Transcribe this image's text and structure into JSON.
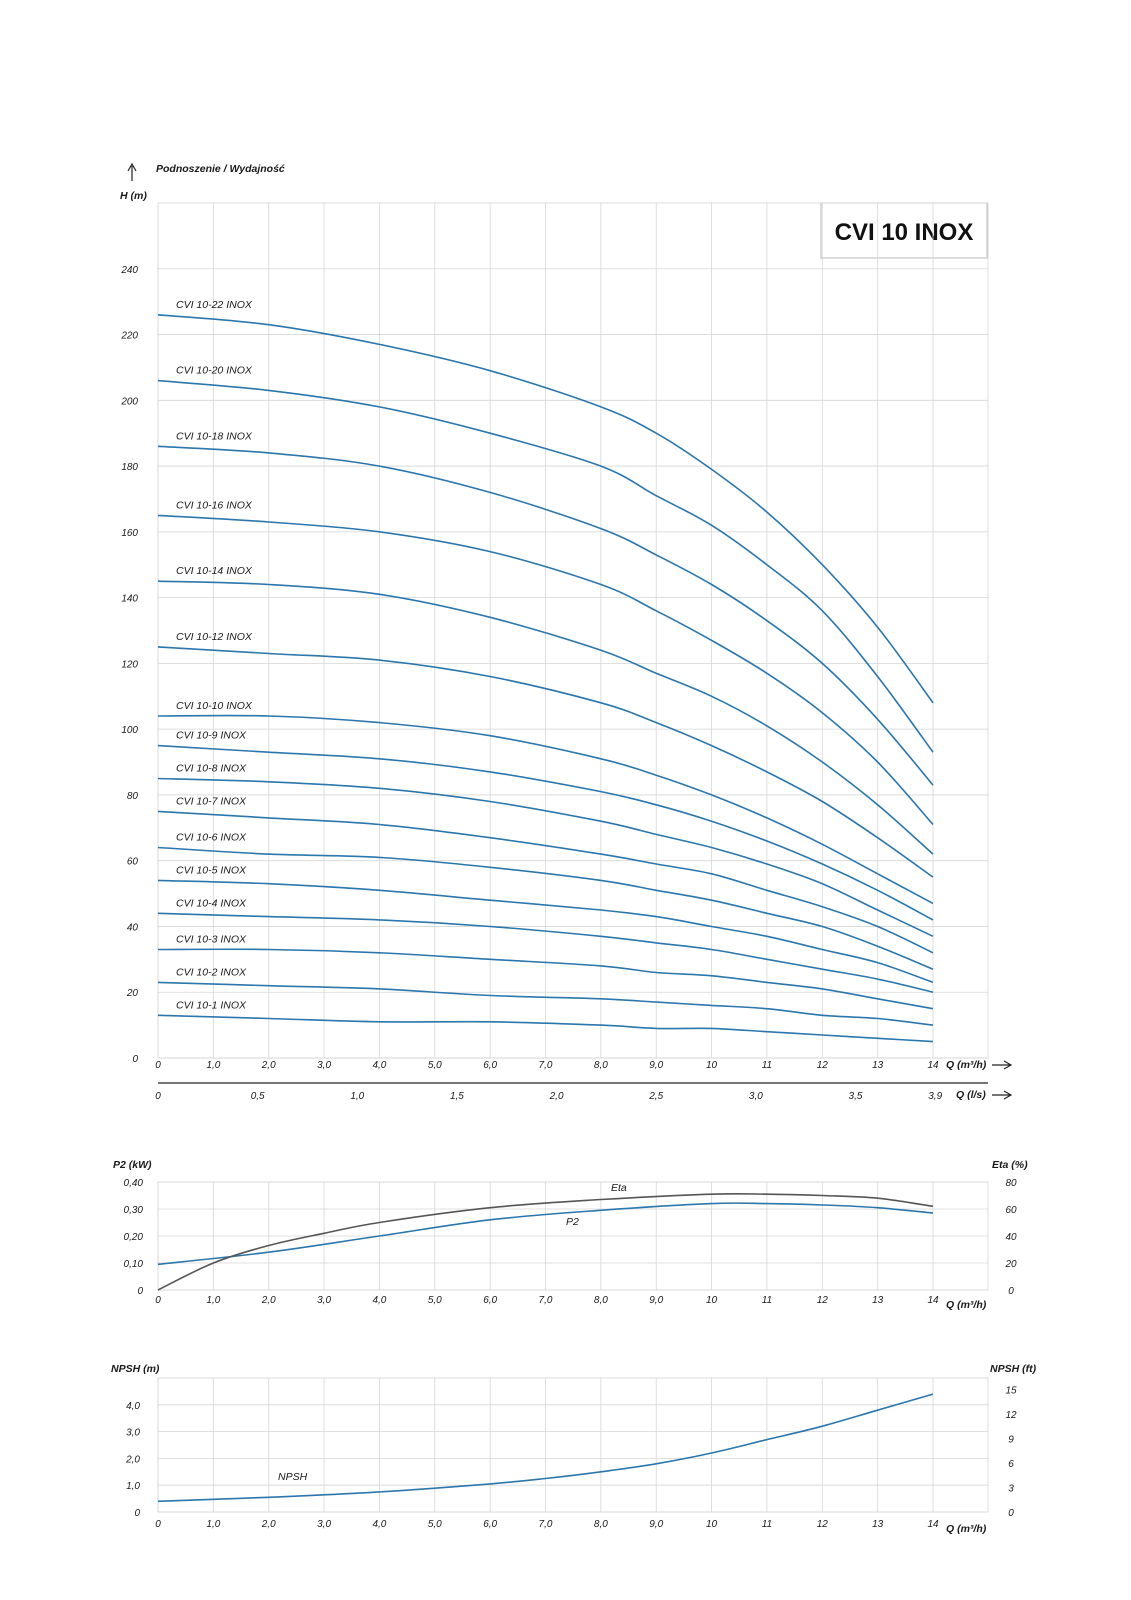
{
  "chart_data": [
    {
      "type": "line",
      "title": "CVI 10 INOX",
      "header": "Podnoszenie / Wydajność",
      "ylabel": "H (m)",
      "xlabel": "Q (m³/h)",
      "x2label": "Q (l/s)",
      "ylim": [
        0,
        260
      ],
      "xlim": [
        0,
        14
      ],
      "yticks": [
        "0",
        "20",
        "40",
        "60",
        "80",
        "100",
        "120",
        "140",
        "160",
        "180",
        "200",
        "220",
        "240"
      ],
      "xticks": [
        "0",
        "1,0",
        "2,0",
        "3,0",
        "4,0",
        "5,0",
        "6,0",
        "7,0",
        "8,0",
        "9,0",
        "10",
        "11",
        "12",
        "13",
        "14"
      ],
      "x2ticks": [
        "0",
        "0,5",
        "1,0",
        "1,5",
        "2,0",
        "2,5",
        "3,0",
        "3,5",
        "3,9"
      ],
      "grid": true,
      "x": [
        0,
        2,
        4,
        6,
        8,
        9,
        10,
        11,
        12,
        13,
        14
      ],
      "series": [
        {
          "name": "CVI 10-22 INOX",
          "values": [
            226,
            223,
            217,
            209,
            198,
            190,
            179,
            166,
            150,
            131,
            108
          ]
        },
        {
          "name": "CVI 10-20 INOX",
          "values": [
            206,
            203,
            198,
            190,
            180,
            171,
            162,
            150,
            136,
            116,
            93
          ]
        },
        {
          "name": "CVI 10-18 INOX",
          "values": [
            186,
            184,
            180,
            172,
            161,
            153,
            144,
            133,
            120,
            103,
            83
          ]
        },
        {
          "name": "CVI 10-16 INOX",
          "values": [
            165,
            163,
            160,
            154,
            144,
            136,
            127,
            117,
            105,
            90,
            71
          ]
        },
        {
          "name": "CVI 10-14 INOX",
          "values": [
            145,
            144,
            141,
            134,
            124,
            117,
            110,
            101,
            90,
            77,
            62
          ]
        },
        {
          "name": "CVI 10-12 INOX",
          "values": [
            125,
            123,
            121,
            116,
            108,
            102,
            95,
            87,
            78,
            67,
            55
          ]
        },
        {
          "name": "CVI 10-10 INOX",
          "values": [
            104,
            104,
            102,
            98,
            91,
            86,
            80,
            73,
            65,
            56,
            47
          ]
        },
        {
          "name": "CVI 10-9 INOX",
          "values": [
            95,
            93,
            91,
            87,
            81,
            77,
            72,
            66,
            59,
            51,
            42
          ]
        },
        {
          "name": "CVI 10-8 INOX",
          "values": [
            85,
            84,
            82,
            78,
            72,
            68,
            64,
            59,
            53,
            45,
            37
          ]
        },
        {
          "name": "CVI 10-7 INOX",
          "values": [
            75,
            73,
            71,
            67,
            62,
            59,
            56,
            51,
            46,
            40,
            32
          ]
        },
        {
          "name": "CVI 10-6 INOX",
          "values": [
            64,
            62,
            61,
            58,
            54,
            51,
            48,
            44,
            40,
            34,
            27
          ]
        },
        {
          "name": "CVI 10-5 INOX",
          "values": [
            54,
            53,
            51,
            48,
            45,
            43,
            40,
            37,
            33,
            29,
            23
          ]
        },
        {
          "name": "CVI 10-4 INOX",
          "values": [
            44,
            43,
            42,
            40,
            37,
            35,
            33,
            30,
            27,
            24,
            20
          ]
        },
        {
          "name": "CVI 10-3 INOX",
          "values": [
            33,
            33,
            32,
            30,
            28,
            26,
            25,
            23,
            21,
            18,
            15
          ]
        },
        {
          "name": "CVI 10-2 INOX",
          "values": [
            23,
            22,
            21,
            19,
            18,
            17,
            16,
            15,
            13,
            12,
            10
          ]
        },
        {
          "name": "CVI 10-1 INOX",
          "values": [
            13,
            12,
            11,
            11,
            10,
            9,
            9,
            8,
            7,
            6,
            5
          ]
        }
      ]
    },
    {
      "type": "line",
      "ylabel": "P2 (kW)",
      "y2label": "Eta (%)",
      "xlabel": "Q (m³/h)",
      "ylim": [
        0,
        0.4
      ],
      "y2lim": [
        0,
        80
      ],
      "yticks": [
        "0",
        "0,10",
        "0,20",
        "0,30",
        "0,40"
      ],
      "y2ticks": [
        "0",
        "20",
        "40",
        "60",
        "80"
      ],
      "xticks": [
        "0",
        "1,0",
        "2,0",
        "3,0",
        "4,0",
        "5,0",
        "6,0",
        "7,0",
        "8,0",
        "9,0",
        "10",
        "11",
        "12",
        "13",
        "14"
      ],
      "grid": true,
      "series": [
        {
          "name": "P2",
          "axis": "left",
          "x": [
            0,
            2,
            4,
            6,
            8,
            10,
            11,
            12,
            13,
            14
          ],
          "values": [
            0.095,
            0.14,
            0.2,
            0.26,
            0.295,
            0.32,
            0.32,
            0.315,
            0.305,
            0.285
          ]
        },
        {
          "name": "Eta",
          "axis": "right",
          "x": [
            0,
            1,
            2,
            3,
            4,
            6,
            8,
            10,
            11,
            12,
            13,
            14
          ],
          "values": [
            0,
            20,
            33,
            42,
            50,
            61,
            67,
            71,
            71,
            70,
            68,
            62
          ]
        }
      ]
    },
    {
      "type": "line",
      "ylabel": "NPSH (m)",
      "y2label": "NPSH (ft)",
      "xlabel": "Q (m³/h)",
      "ylim": [
        0,
        5
      ],
      "y2lim": [
        0,
        16.4
      ],
      "yticks": [
        "0",
        "1,0",
        "2,0",
        "3,0",
        "4,0"
      ],
      "y2ticks": [
        "0",
        "3",
        "6",
        "9",
        "12",
        "15"
      ],
      "xticks": [
        "0",
        "1,0",
        "2,0",
        "3,0",
        "4,0",
        "5,0",
        "6,0",
        "7,0",
        "8,0",
        "9,0",
        "10",
        "11",
        "12",
        "13",
        "14"
      ],
      "grid": true,
      "series": [
        {
          "name": "NPSH",
          "x": [
            0,
            2,
            4,
            6,
            7,
            8,
            9,
            10,
            11,
            12,
            13,
            14
          ],
          "values": [
            0.4,
            0.55,
            0.75,
            1.05,
            1.25,
            1.5,
            1.8,
            2.2,
            2.7,
            3.2,
            3.8,
            4.4
          ]
        }
      ]
    }
  ]
}
